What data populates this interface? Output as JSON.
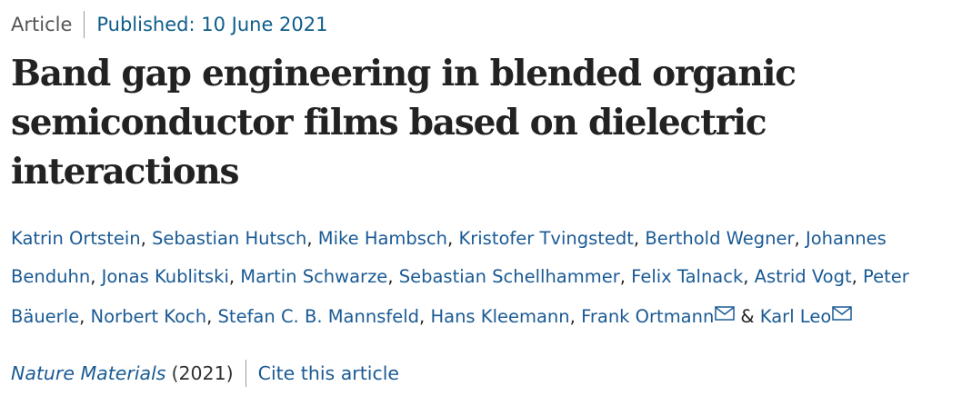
{
  "meta": {
    "article_type": "Article",
    "published": "Published: 10 June 2021"
  },
  "title": "Band gap engineering in blended organic semiconductor films based on dielectric interactions",
  "authors": [
    "Katrin Ortstein",
    "Sebastian Hutsch",
    "Mike Hambsch",
    "Kristofer Tvingstedt",
    "Berthold Wegner",
    "Johannes Benduhn",
    "Jonas Kublitski",
    "Martin Schwarze",
    "Sebastian Schellhammer",
    "Felix Talnack",
    "Astrid Vogt",
    "Peter Bäuerle",
    "Norbert Koch",
    "Stefan C. B. Mannsfeld",
    "Hans Kleemann",
    "Frank Ortmann",
    "Karl Leo"
  ],
  "author_separator": ", ",
  "last_separator": " & ",
  "corresponding_authors": [
    "Frank Ortmann",
    "Karl Leo"
  ],
  "icons": {
    "mail": "envelope-icon"
  },
  "colors": {
    "link": "#1a5a94",
    "published": "#0e5e8a",
    "title": "#222222"
  },
  "citation": {
    "journal": "Nature Materials",
    "year": "(2021)",
    "cite_label": "Cite this article"
  }
}
